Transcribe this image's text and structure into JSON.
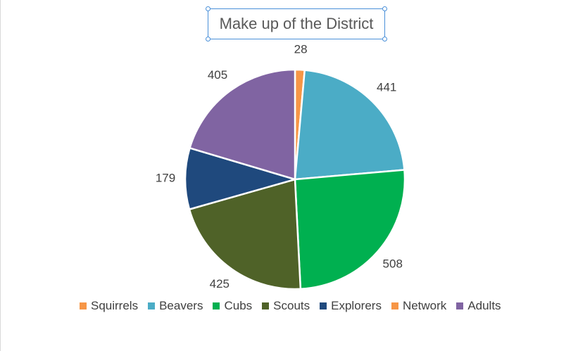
{
  "chart_data": {
    "type": "pie",
    "title": "Make up of the District",
    "categories": [
      "Squirrels",
      "Beavers",
      "Cubs",
      "Scouts",
      "Explorers",
      "Network",
      "Adults"
    ],
    "values": [
      28,
      441,
      508,
      425,
      179,
      0,
      405
    ],
    "colors": [
      "#F79646",
      "#4BACC6",
      "#00B050",
      "#4F6228",
      "#1F497D",
      "#F79646",
      "#8064A2"
    ],
    "data_labels": [
      "28",
      "441",
      "508",
      "425",
      "179",
      "",
      "405"
    ],
    "legend_placement": "bottom",
    "slice_border_color": "#ffffff"
  }
}
